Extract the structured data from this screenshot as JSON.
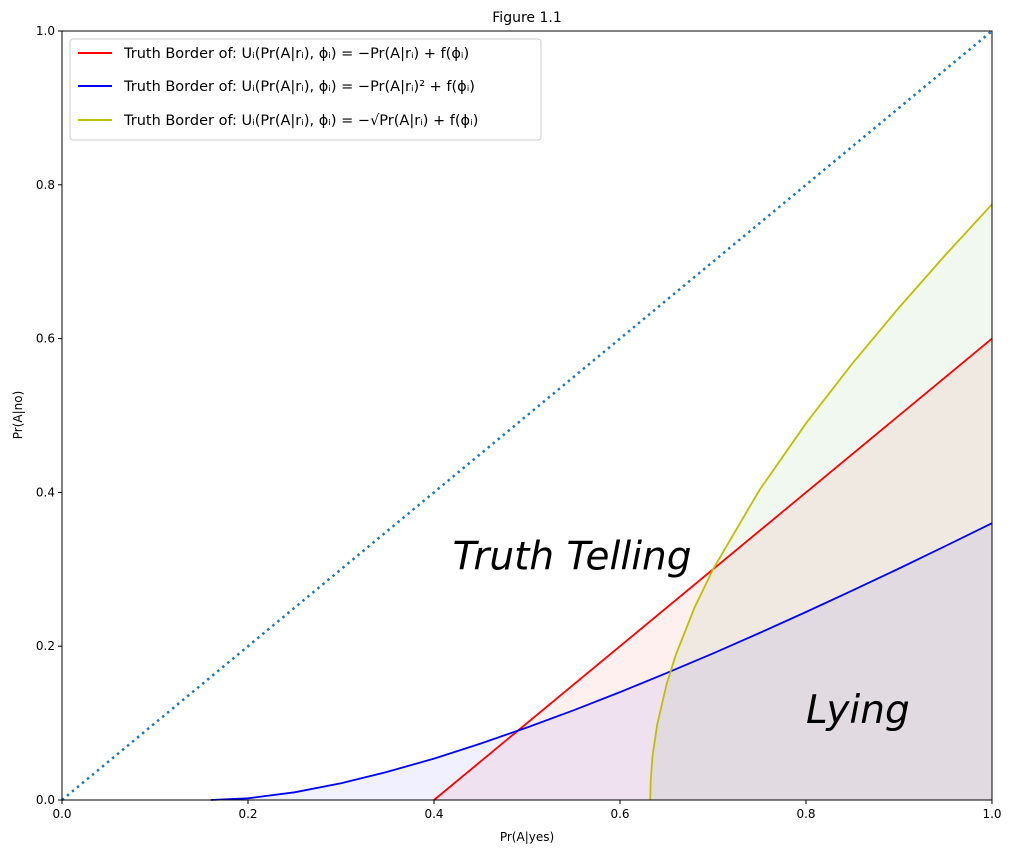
{
  "chart_data": {
    "type": "line",
    "title": "Figure 1.1",
    "xlabel": "Pr(A|yes)",
    "ylabel": "Pr(A|no)",
    "xlim": [
      0,
      1
    ],
    "ylim": [
      0,
      1
    ],
    "grid": false,
    "legend_placement": "upper-left",
    "xticks": [
      "0.0",
      "0.2",
      "0.4",
      "0.6",
      "0.8",
      "1.0"
    ],
    "yticks": [
      "0.0",
      "0.2",
      "0.4",
      "0.6",
      "0.8",
      "1.0"
    ],
    "series": [
      {
        "name": "Truth Border of: Uᵢ(Pr(A|rᵢ), ϕᵢ) = −Pr(A|rᵢ) + f(ϕᵢ)",
        "color": "#ff0000",
        "fill": true,
        "points": [
          [
            0.4,
            0
          ],
          [
            1.0,
            0.6
          ]
        ]
      },
      {
        "name": "Truth Border of: Uᵢ(Pr(A|rᵢ), ϕᵢ) = −Pr(A|rᵢ)² + f(ϕᵢ)",
        "color": "#0000ff",
        "fill": true,
        "points": [
          [
            0.16,
            0
          ],
          [
            0.2,
            0.0022
          ],
          [
            0.25,
            0.01
          ],
          [
            0.3,
            0.0218
          ],
          [
            0.35,
            0.0367
          ],
          [
            0.4,
            0.0539
          ],
          [
            0.45,
            0.0733
          ],
          [
            0.5,
            0.0943
          ],
          [
            0.55,
            0.1167
          ],
          [
            0.6,
            0.1403
          ],
          [
            0.65,
            0.165
          ],
          [
            0.7,
            0.1907
          ],
          [
            0.75,
            0.2172
          ],
          [
            0.8,
            0.2445
          ],
          [
            0.85,
            0.2725
          ],
          [
            0.9,
            0.3011
          ],
          [
            0.95,
            0.3303
          ],
          [
            1.0,
            0.36
          ]
        ]
      },
      {
        "name": "Truth Border of: Uᵢ(Pr(A|rᵢ), ϕᵢ) = −√Pr(A|rᵢ) + f(ϕᵢ)",
        "color": "#bfbf00",
        "fill": true,
        "points": [
          [
            0.6325,
            0
          ],
          [
            0.633,
            0.025
          ],
          [
            0.635,
            0.057
          ],
          [
            0.64,
            0.098
          ],
          [
            0.65,
            0.15
          ],
          [
            0.66,
            0.1887
          ],
          [
            0.68,
            0.2498
          ],
          [
            0.7,
            0.3
          ],
          [
            0.75,
            0.4031
          ],
          [
            0.8,
            0.4899
          ],
          [
            0.85,
            0.5679
          ],
          [
            0.9,
            0.6403
          ],
          [
            0.95,
            0.7089
          ],
          [
            1.0,
            0.7746
          ]
        ]
      }
    ],
    "reference_line": {
      "color": "#1f77b4",
      "style": "dotted",
      "points": [
        [
          0,
          0
        ],
        [
          1,
          1
        ]
      ]
    },
    "fill_colors": [
      "#ff0000",
      "#0000ff",
      "#008000"
    ],
    "annotations": [
      {
        "text": "Truth Telling",
        "x": 0.42,
        "y": 0.3
      },
      {
        "text": "Lying",
        "x": 0.8,
        "y": 0.1
      }
    ]
  }
}
